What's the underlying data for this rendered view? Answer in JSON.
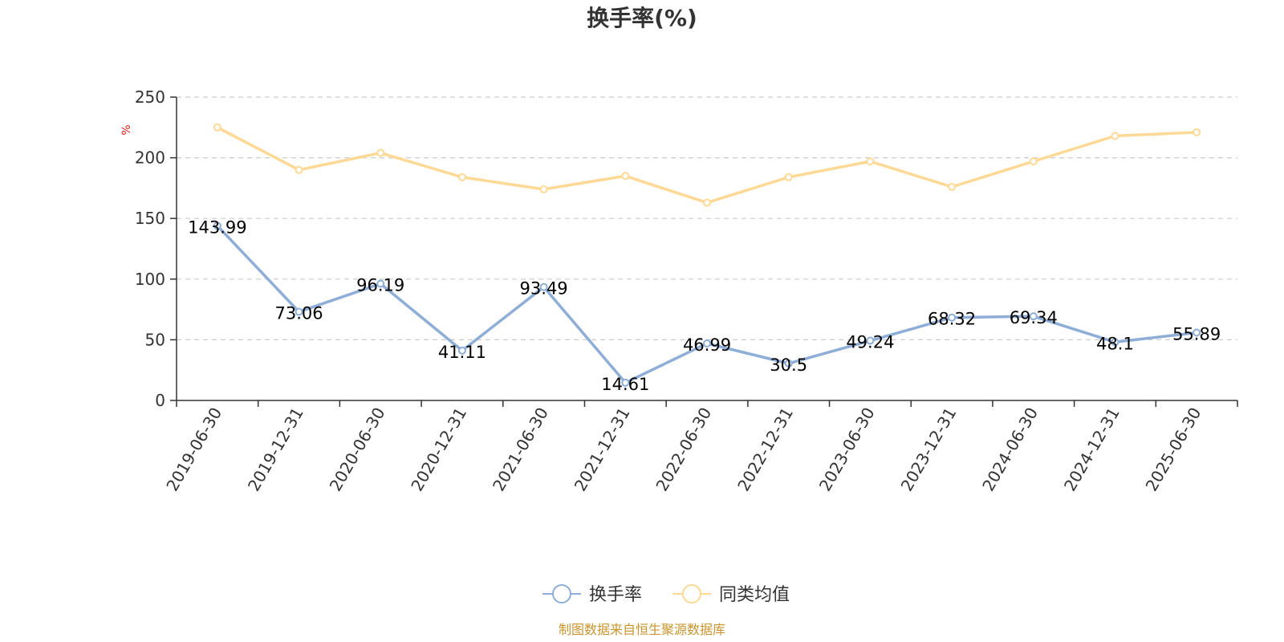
{
  "chart_data": {
    "type": "line",
    "title": "换手率(%)",
    "ylabel": "%",
    "ylim": [
      0,
      250
    ],
    "yticks": [
      0,
      50,
      100,
      150,
      200,
      250
    ],
    "grid": true,
    "legend_position": "bottom-center",
    "categories": [
      "2019-06-30",
      "2019-12-31",
      "2020-06-30",
      "2020-12-31",
      "2021-06-30",
      "2021-12-31",
      "2022-06-30",
      "2022-12-31",
      "2023-06-30",
      "2023-12-31",
      "2024-06-30",
      "2024-12-31",
      "2025-06-30"
    ],
    "series": [
      {
        "name": "换手率",
        "color": "#8eaed8",
        "show_labels": true,
        "values": [
          143.99,
          73.06,
          96.19,
          41.11,
          93.49,
          14.61,
          46.99,
          30.5,
          49.24,
          68.32,
          69.34,
          48.1,
          55.89
        ]
      },
      {
        "name": "同类均值",
        "color": "#fdd995",
        "show_labels": false,
        "values": [
          225,
          190,
          204,
          184,
          174,
          185,
          163,
          184,
          197,
          176,
          197,
          218,
          221
        ]
      }
    ],
    "unit_color": "#e02020"
  },
  "source": {
    "text": "制图数据来自恒生聚源数据库",
    "color": "#c8952e"
  }
}
